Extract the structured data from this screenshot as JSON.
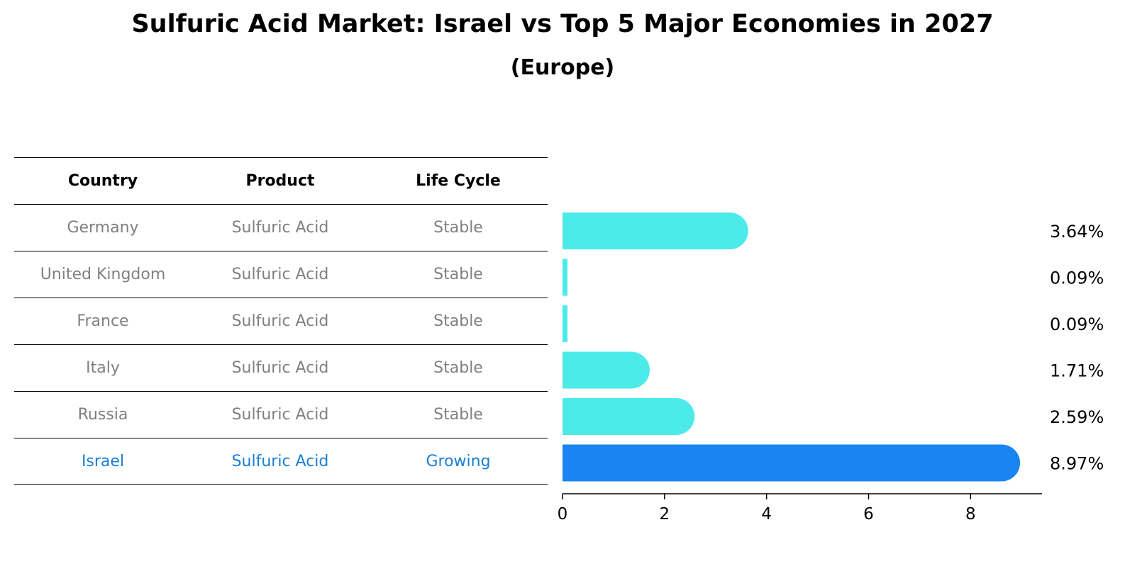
{
  "title": "Sulfuric Acid Market: Israel vs Top 5 Major Economies in 2027",
  "subtitle": "(Europe)",
  "table": {
    "headers": [
      "Country",
      "Product",
      "Life Cycle"
    ],
    "rows": [
      [
        "Germany",
        "Sulfuric Acid",
        "Stable"
      ],
      [
        "United Kingdom",
        "Sulfuric Acid",
        "Stable"
      ],
      [
        "France",
        "Sulfuric Acid",
        "Stable"
      ],
      [
        "Italy",
        "Sulfuric Acid",
        "Stable"
      ],
      [
        "Russia",
        "Sulfuric Acid",
        "Stable"
      ],
      [
        "Israel",
        "Sulfuric Acid",
        "Growing"
      ]
    ]
  },
  "chart_data": {
    "type": "bar",
    "orientation": "horizontal",
    "categories": [
      "Germany",
      "United Kingdom",
      "France",
      "Italy",
      "Russia",
      "Israel"
    ],
    "values": [
      3.64,
      0.09,
      0.09,
      1.71,
      2.59,
      8.97
    ],
    "value_labels": [
      "3.64%",
      "0.09%",
      "0.09%",
      "1.71%",
      "2.59%",
      "8.97%"
    ],
    "highlight": "Israel",
    "xlim": [
      0,
      9.4
    ],
    "xticks": [
      0,
      2,
      4,
      6,
      8
    ],
    "colors": {
      "default": "#4deaea",
      "highlight": "#1a84f2",
      "table_highlight": "#1a7fd4",
      "table_text": "#808080"
    }
  }
}
